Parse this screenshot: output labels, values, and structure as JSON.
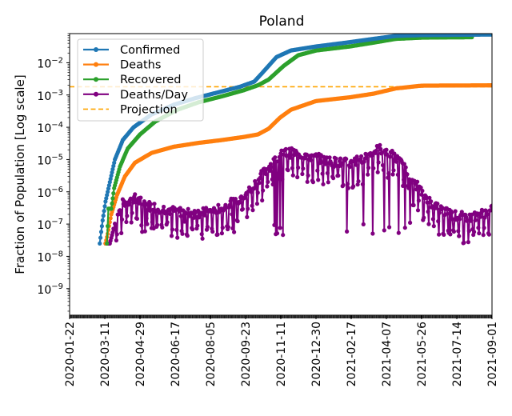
{
  "chart_data": {
    "type": "line",
    "title": "Poland",
    "xlabel": "",
    "ylabel": "Fraction of Population [Log scale]",
    "yscale": "log",
    "xlim": [
      "2020-01-22",
      "2021-09-01"
    ],
    "ylim": [
      1.5e-10,
      0.08
    ],
    "grid": false,
    "legend_position": "top-left",
    "x_tick_labels": [
      "2020-01-22",
      "2020-03-11",
      "2020-04-29",
      "2020-06-17",
      "2020-08-05",
      "2020-09-23",
      "2020-11-11",
      "2020-12-30",
      "2021-02-17",
      "2021-04-07",
      "2021-05-26",
      "2021-07-14",
      "2021-09-01"
    ],
    "y_ticks": [
      {
        "value": 0.01,
        "base": "10",
        "exp": "−2"
      },
      {
        "value": 0.001,
        "base": "10",
        "exp": "−3"
      },
      {
        "value": 0.0001,
        "base": "10",
        "exp": "−4"
      },
      {
        "value": 1e-05,
        "base": "10",
        "exp": "−5"
      },
      {
        "value": 1e-06,
        "base": "10",
        "exp": "−6"
      },
      {
        "value": 1e-07,
        "base": "10",
        "exp": "−7"
      },
      {
        "value": 1e-08,
        "base": "10",
        "exp": "−8"
      },
      {
        "value": 1e-09,
        "base": "10",
        "exp": "−9"
      }
    ],
    "series": [
      {
        "name": "Confirmed",
        "color": "#1f77b4",
        "marker": "dot",
        "start": "2020-03-04",
        "end": "2021-09-01",
        "points": [
          [
            "2020-03-04",
            2.5e-08
          ],
          [
            "2020-03-08",
            1.3e-07
          ],
          [
            "2020-03-12",
            5e-07
          ],
          [
            "2020-03-18",
            2e-06
          ],
          [
            "2020-03-25",
            1e-05
          ],
          [
            "2020-04-05",
            4e-05
          ],
          [
            "2020-04-20",
            0.0001
          ],
          [
            "2020-05-15",
            0.00025
          ],
          [
            "2020-06-15",
            0.0005
          ],
          [
            "2020-07-15",
            0.0008
          ],
          [
            "2020-08-15",
            0.0012
          ],
          [
            "2020-09-15",
            0.0018
          ],
          [
            "2020-10-05",
            0.0026
          ],
          [
            "2020-10-20",
            0.006
          ],
          [
            "2020-11-05",
            0.015
          ],
          [
            "2020-11-25",
            0.024
          ],
          [
            "2020-12-30",
            0.032
          ],
          [
            "2021-02-10",
            0.042
          ],
          [
            "2021-03-20",
            0.055
          ],
          [
            "2021-04-20",
            0.068
          ],
          [
            "2021-05-26",
            0.072
          ],
          [
            "2021-09-01",
            0.075
          ]
        ]
      },
      {
        "name": "Deaths",
        "color": "#ff7f0e",
        "marker": "dot",
        "start": "2020-03-12",
        "end": "2021-09-01",
        "points": [
          [
            "2020-03-12",
            2.5e-08
          ],
          [
            "2020-03-15",
            5e-08
          ],
          [
            "2020-03-20",
            2e-07
          ],
          [
            "2020-03-28",
            8e-07
          ],
          [
            "2020-04-08",
            3e-06
          ],
          [
            "2020-04-22",
            8e-06
          ],
          [
            "2020-05-15",
            1.6e-05
          ],
          [
            "2020-06-15",
            2.5e-05
          ],
          [
            "2020-07-20",
            3.3e-05
          ],
          [
            "2020-08-20",
            4e-05
          ],
          [
            "2020-09-20",
            5e-05
          ],
          [
            "2020-10-10",
            6e-05
          ],
          [
            "2020-10-25",
            9e-05
          ],
          [
            "2020-11-10",
            0.0002
          ],
          [
            "2020-11-25",
            0.00035
          ],
          [
            "2020-12-30",
            0.00065
          ],
          [
            "2021-02-15",
            0.00085
          ],
          [
            "2021-03-20",
            0.0011
          ],
          [
            "2021-04-20",
            0.0016
          ],
          [
            "2021-05-26",
            0.00195
          ],
          [
            "2021-09-01",
            0.002
          ]
        ]
      },
      {
        "name": "Recovered",
        "color": "#2ca02c",
        "marker": "dot",
        "start": "2020-03-14",
        "end": "2021-08-04",
        "points": [
          [
            "2020-03-14",
            2.5e-08
          ],
          [
            "2020-03-16",
            3e-07
          ],
          [
            "2020-03-20",
            3e-07
          ],
          [
            "2020-03-24",
            1.3e-06
          ],
          [
            "2020-04-01",
            6e-06
          ],
          [
            "2020-04-12",
            2.2e-05
          ],
          [
            "2020-04-29",
            6e-05
          ],
          [
            "2020-05-20",
            0.00015
          ],
          [
            "2020-06-20",
            0.00035
          ],
          [
            "2020-07-20",
            0.0006
          ],
          [
            "2020-08-20",
            0.0009
          ],
          [
            "2020-09-20",
            0.0014
          ],
          [
            "2020-10-10",
            0.002
          ],
          [
            "2020-10-25",
            0.003
          ],
          [
            "2020-11-15",
            0.008
          ],
          [
            "2020-12-05",
            0.017
          ],
          [
            "2020-12-30",
            0.024
          ],
          [
            "2021-02-15",
            0.032
          ],
          [
            "2021-03-20",
            0.042
          ],
          [
            "2021-04-20",
            0.055
          ],
          [
            "2021-05-26",
            0.06
          ],
          [
            "2021-08-04",
            0.062
          ]
        ]
      },
      {
        "name": "Deaths/Day",
        "color": "#800080",
        "marker": "dot",
        "start": "2020-03-12",
        "end": "2021-09-01",
        "points": [
          [
            "2020-03-12",
            2.5e-08
          ],
          [
            "2020-03-18",
            2.5e-08
          ],
          [
            "2020-03-25",
            1e-07
          ],
          [
            "2020-04-05",
            4e-07
          ],
          [
            "2020-04-20",
            6e-07
          ],
          [
            "2020-05-10",
            3.5e-07
          ],
          [
            "2020-06-10",
            2.5e-07
          ],
          [
            "2020-07-10",
            2e-07
          ],
          [
            "2020-08-05",
            2.2e-07
          ],
          [
            "2020-08-25",
            3.5e-07
          ],
          [
            "2020-09-15",
            6e-07
          ],
          [
            "2020-10-01",
            1.2e-06
          ],
          [
            "2020-10-15",
            3e-06
          ],
          [
            "2020-10-30",
            7e-06
          ],
          [
            "2020-11-15",
            1.5e-05
          ],
          [
            "2020-11-30",
            1.5e-05
          ],
          [
            "2020-12-20",
            1.2e-05
          ],
          [
            "2021-01-20",
            8e-06
          ],
          [
            "2021-02-17",
            7e-06
          ],
          [
            "2021-03-10",
            1.2e-05
          ],
          [
            "2021-03-28",
            2e-05
          ],
          [
            "2021-04-10",
            1.6e-05
          ],
          [
            "2021-04-25",
            8e-06
          ],
          [
            "2021-05-10",
            3e-06
          ],
          [
            "2021-05-26",
            9e-07
          ],
          [
            "2021-06-15",
            3e-07
          ],
          [
            "2021-07-10",
            1.7e-07
          ],
          [
            "2021-08-05",
            1.5e-07
          ],
          [
            "2021-09-01",
            2.5e-07
          ]
        ]
      }
    ],
    "projection": {
      "name": "Projection",
      "color": "#ffa500",
      "value": 0.0018,
      "style": "dashed"
    },
    "legend": [
      "Confirmed",
      "Deaths",
      "Recovered",
      "Deaths/Day",
      "Projection"
    ]
  }
}
